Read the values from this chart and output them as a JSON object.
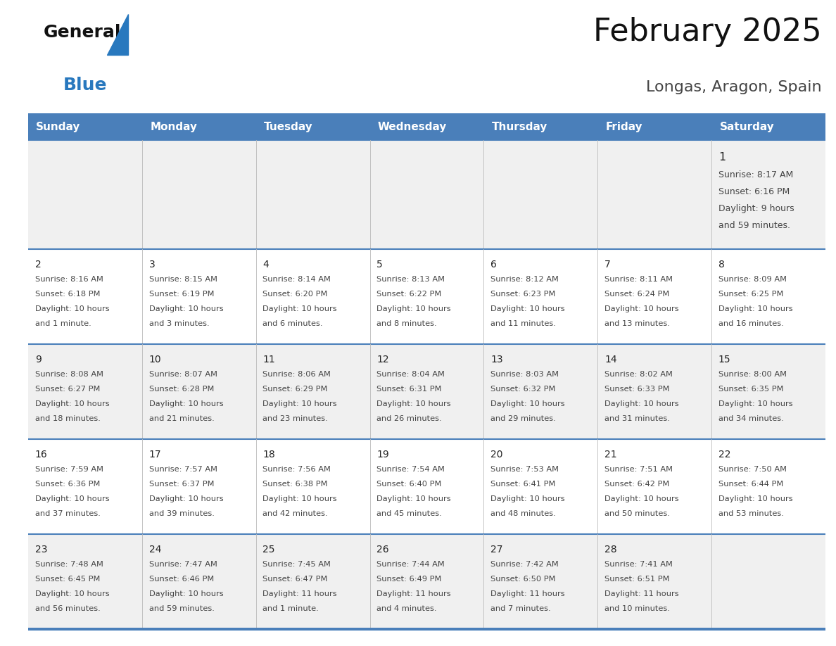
{
  "title": "February 2025",
  "subtitle": "Longas, Aragon, Spain",
  "days_of_week": [
    "Sunday",
    "Monday",
    "Tuesday",
    "Wednesday",
    "Thursday",
    "Friday",
    "Saturday"
  ],
  "header_bg": "#4a7fba",
  "header_text": "#FFFFFF",
  "cell_bg_light": "#F0F0F0",
  "cell_bg_white": "#FFFFFF",
  "border_color": "#4a7fba",
  "sep_color": "#BBBBBB",
  "day_number_color": "#222222",
  "cell_text_color": "#444444",
  "title_color": "#111111",
  "subtitle_color": "#444444",
  "logo_general_color": "#111111",
  "logo_blue_color": "#2878BE",
  "figsize": [
    11.88,
    9.18
  ],
  "dpi": 100,
  "calendar_data": [
    [
      null,
      null,
      null,
      null,
      null,
      null,
      {
        "day": 1,
        "sunrise": "8:17 AM",
        "sunset": "6:16 PM",
        "daylight": "9 hours",
        "daylight2": "and 59 minutes."
      }
    ],
    [
      {
        "day": 2,
        "sunrise": "8:16 AM",
        "sunset": "6:18 PM",
        "daylight": "10 hours",
        "daylight2": "and 1 minute."
      },
      {
        "day": 3,
        "sunrise": "8:15 AM",
        "sunset": "6:19 PM",
        "daylight": "10 hours",
        "daylight2": "and 3 minutes."
      },
      {
        "day": 4,
        "sunrise": "8:14 AM",
        "sunset": "6:20 PM",
        "daylight": "10 hours",
        "daylight2": "and 6 minutes."
      },
      {
        "day": 5,
        "sunrise": "8:13 AM",
        "sunset": "6:22 PM",
        "daylight": "10 hours",
        "daylight2": "and 8 minutes."
      },
      {
        "day": 6,
        "sunrise": "8:12 AM",
        "sunset": "6:23 PM",
        "daylight": "10 hours",
        "daylight2": "and 11 minutes."
      },
      {
        "day": 7,
        "sunrise": "8:11 AM",
        "sunset": "6:24 PM",
        "daylight": "10 hours",
        "daylight2": "and 13 minutes."
      },
      {
        "day": 8,
        "sunrise": "8:09 AM",
        "sunset": "6:25 PM",
        "daylight": "10 hours",
        "daylight2": "and 16 minutes."
      }
    ],
    [
      {
        "day": 9,
        "sunrise": "8:08 AM",
        "sunset": "6:27 PM",
        "daylight": "10 hours",
        "daylight2": "and 18 minutes."
      },
      {
        "day": 10,
        "sunrise": "8:07 AM",
        "sunset": "6:28 PM",
        "daylight": "10 hours",
        "daylight2": "and 21 minutes."
      },
      {
        "day": 11,
        "sunrise": "8:06 AM",
        "sunset": "6:29 PM",
        "daylight": "10 hours",
        "daylight2": "and 23 minutes."
      },
      {
        "day": 12,
        "sunrise": "8:04 AM",
        "sunset": "6:31 PM",
        "daylight": "10 hours",
        "daylight2": "and 26 minutes."
      },
      {
        "day": 13,
        "sunrise": "8:03 AM",
        "sunset": "6:32 PM",
        "daylight": "10 hours",
        "daylight2": "and 29 minutes."
      },
      {
        "day": 14,
        "sunrise": "8:02 AM",
        "sunset": "6:33 PM",
        "daylight": "10 hours",
        "daylight2": "and 31 minutes."
      },
      {
        "day": 15,
        "sunrise": "8:00 AM",
        "sunset": "6:35 PM",
        "daylight": "10 hours",
        "daylight2": "and 34 minutes."
      }
    ],
    [
      {
        "day": 16,
        "sunrise": "7:59 AM",
        "sunset": "6:36 PM",
        "daylight": "10 hours",
        "daylight2": "and 37 minutes."
      },
      {
        "day": 17,
        "sunrise": "7:57 AM",
        "sunset": "6:37 PM",
        "daylight": "10 hours",
        "daylight2": "and 39 minutes."
      },
      {
        "day": 18,
        "sunrise": "7:56 AM",
        "sunset": "6:38 PM",
        "daylight": "10 hours",
        "daylight2": "and 42 minutes."
      },
      {
        "day": 19,
        "sunrise": "7:54 AM",
        "sunset": "6:40 PM",
        "daylight": "10 hours",
        "daylight2": "and 45 minutes."
      },
      {
        "day": 20,
        "sunrise": "7:53 AM",
        "sunset": "6:41 PM",
        "daylight": "10 hours",
        "daylight2": "and 48 minutes."
      },
      {
        "day": 21,
        "sunrise": "7:51 AM",
        "sunset": "6:42 PM",
        "daylight": "10 hours",
        "daylight2": "and 50 minutes."
      },
      {
        "day": 22,
        "sunrise": "7:50 AM",
        "sunset": "6:44 PM",
        "daylight": "10 hours",
        "daylight2": "and 53 minutes."
      }
    ],
    [
      {
        "day": 23,
        "sunrise": "7:48 AM",
        "sunset": "6:45 PM",
        "daylight": "10 hours",
        "daylight2": "and 56 minutes."
      },
      {
        "day": 24,
        "sunrise": "7:47 AM",
        "sunset": "6:46 PM",
        "daylight": "10 hours",
        "daylight2": "and 59 minutes."
      },
      {
        "day": 25,
        "sunrise": "7:45 AM",
        "sunset": "6:47 PM",
        "daylight": "11 hours",
        "daylight2": "and 1 minute."
      },
      {
        "day": 26,
        "sunrise": "7:44 AM",
        "sunset": "6:49 PM",
        "daylight": "11 hours",
        "daylight2": "and 4 minutes."
      },
      {
        "day": 27,
        "sunrise": "7:42 AM",
        "sunset": "6:50 PM",
        "daylight": "11 hours",
        "daylight2": "and 7 minutes."
      },
      {
        "day": 28,
        "sunrise": "7:41 AM",
        "sunset": "6:51 PM",
        "daylight": "11 hours",
        "daylight2": "and 10 minutes."
      },
      null
    ]
  ]
}
